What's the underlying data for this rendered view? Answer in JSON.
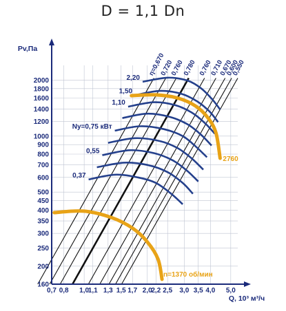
{
  "chart_data": {
    "type": "line",
    "title": "D = 1,1 Dn",
    "xlabel": "Q, 10³ м³/ч",
    "ylabel": "Pv,Па",
    "x_scale": "log",
    "y_scale": "log",
    "xlim": [
      0.7,
      5.4
    ],
    "ylim": [
      160,
      2400
    ],
    "x_ticks": [
      0.7,
      0.8,
      1.0,
      1.1,
      1.3,
      1.5,
      1.7,
      2.0,
      2.2,
      2.5,
      3.0,
      3.5,
      4.0,
      5.0
    ],
    "x_tick_labels": [
      "0,7",
      "0,8",
      "1,0",
      "1,1",
      "1,3",
      "1,5",
      "1,7",
      "2,0",
      "2,2",
      "2,5",
      "3,0",
      "3,5",
      "4,0",
      "5,0"
    ],
    "y_ticks": [
      160,
      200,
      250,
      300,
      350,
      400,
      450,
      500,
      600,
      700,
      800,
      900,
      1000,
      1200,
      1400,
      1600,
      1800,
      2000
    ],
    "y_tick_labels": [
      "160",
      "200",
      "250",
      "300",
      "350",
      "400",
      "450",
      "500",
      "600",
      "700",
      "800",
      "900",
      "1000",
      "1200",
      "1400",
      "1600",
      "1800",
      "2000"
    ],
    "grid": true,
    "efficiency_label_prefix": "η=",
    "efficiency_lines": [
      {
        "label": "0,670",
        "x": 2.15,
        "y": 2050,
        "bold": false
      },
      {
        "label": "0,720",
        "x": 2.45,
        "y": 2050,
        "bold": false
      },
      {
        "label": "0,760",
        "x": 2.75,
        "y": 2050,
        "bold": false
      },
      {
        "label": "0,780",
        "x": 3.15,
        "y": 2050,
        "bold": true
      },
      {
        "label": "0,760",
        "x": 3.75,
        "y": 2050,
        "bold": false
      },
      {
        "label": "0,710",
        "x": 4.25,
        "y": 2050,
        "bold": false
      },
      {
        "label": "0,670",
        "x": 4.7,
        "y": 2050,
        "bold": false
      },
      {
        "label": "0,600",
        "x": 5.05,
        "y": 2050,
        "bold": false
      },
      {
        "label": "0,550",
        "x": 5.4,
        "y": 2050,
        "bold": false
      }
    ],
    "power_curves": [
      {
        "label": "0,37",
        "points": [
          [
            1.05,
            585
          ],
          [
            1.4,
            620
          ],
          [
            1.8,
            600
          ],
          [
            2.2,
            560
          ],
          [
            2.6,
            490
          ],
          [
            2.95,
            430
          ]
        ]
      },
      {
        "label": null,
        "points": [
          [
            1.15,
            680
          ],
          [
            1.55,
            720
          ],
          [
            2.0,
            700
          ],
          [
            2.5,
            640
          ],
          [
            2.95,
            560
          ],
          [
            3.3,
            490
          ]
        ]
      },
      {
        "label": "0,55",
        "points": [
          [
            1.22,
            790
          ],
          [
            1.65,
            840
          ],
          [
            2.15,
            810
          ],
          [
            2.65,
            740
          ],
          [
            3.1,
            650
          ],
          [
            3.5,
            570
          ]
        ]
      },
      {
        "label": null,
        "points": [
          [
            1.3,
            920
          ],
          [
            1.75,
            975
          ],
          [
            2.3,
            940
          ],
          [
            2.8,
            860
          ],
          [
            3.25,
            760
          ],
          [
            3.7,
            660
          ]
        ]
      },
      {
        "label": "Ny=0,75 кВт",
        "points": [
          [
            1.4,
            1070
          ],
          [
            1.85,
            1130
          ],
          [
            2.4,
            1090
          ],
          [
            2.95,
            1000
          ],
          [
            3.4,
            880
          ],
          [
            3.85,
            770
          ]
        ]
      },
      {
        "label": null,
        "points": [
          [
            1.52,
            1250
          ],
          [
            2.0,
            1320
          ],
          [
            2.55,
            1270
          ],
          [
            3.1,
            1160
          ],
          [
            3.6,
            1020
          ],
          [
            4.05,
            890
          ]
        ]
      },
      {
        "label": "1,10",
        "points": [
          [
            1.62,
            1440
          ],
          [
            2.15,
            1520
          ],
          [
            2.7,
            1470
          ],
          [
            3.25,
            1340
          ],
          [
            3.75,
            1180
          ],
          [
            4.2,
            1030
          ]
        ]
      },
      {
        "label": "1,50",
        "points": [
          [
            1.75,
            1660
          ],
          [
            2.3,
            1750
          ],
          [
            2.9,
            1690
          ],
          [
            3.45,
            1540
          ],
          [
            3.95,
            1360
          ],
          [
            4.35,
            1190
          ]
        ]
      },
      {
        "label": "2,20",
        "points": [
          [
            1.9,
            1960
          ],
          [
            2.5,
            2060
          ],
          [
            3.1,
            1990
          ],
          [
            3.6,
            1810
          ],
          [
            4.05,
            1590
          ],
          [
            4.45,
            1390
          ]
        ]
      }
    ],
    "series": [
      {
        "name": "n=1370 об/мин",
        "points": [
          [
            0.72,
            388
          ],
          [
            1.0,
            395
          ],
          [
            1.35,
            365
          ],
          [
            1.7,
            320
          ],
          [
            2.0,
            270
          ],
          [
            2.25,
            218
          ],
          [
            2.35,
            170
          ]
        ]
      },
      {
        "name": "2760",
        "points": [
          [
            1.68,
            1650
          ],
          [
            2.2,
            1665
          ],
          [
            2.8,
            1600
          ],
          [
            3.4,
            1450
          ],
          [
            3.9,
            1250
          ],
          [
            4.25,
            1040
          ],
          [
            4.45,
            760
          ]
        ]
      }
    ],
    "annotations": [
      "n=1370 об/мин",
      "2760"
    ]
  }
}
